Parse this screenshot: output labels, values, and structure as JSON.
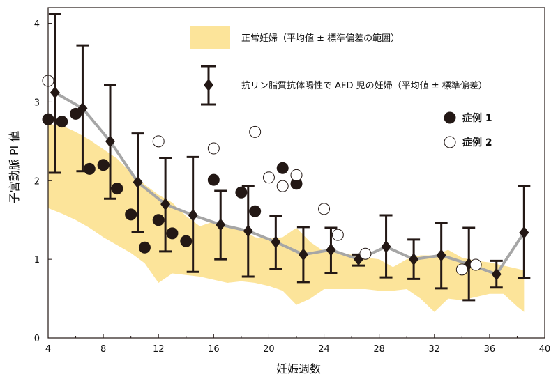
{
  "chart_data": {
    "type": "line",
    "xlabel": "妊娠週数",
    "ylabel": "子宮動脈 PI 値",
    "xlim": [
      4,
      40
    ],
    "ylim": [
      0,
      4.2
    ],
    "xticks": [
      4,
      8,
      12,
      16,
      20,
      24,
      28,
      32,
      36,
      40
    ],
    "yticks": [
      0,
      1,
      2,
      3,
      4
    ],
    "grid": false,
    "legend_position": "top-right",
    "colors": {
      "band": "#fce49a",
      "mean_line": "#a6a6a6",
      "marker": "#231815"
    },
    "series": [
      {
        "name": "正常妊婦（平均値 ± 標準偏差の範囲）",
        "kind": "band",
        "x": [
          4,
          5,
          6,
          7,
          8,
          9,
          10,
          11,
          12,
          13,
          14,
          15,
          16,
          17,
          18,
          19,
          20,
          21,
          22,
          23,
          24,
          25,
          26,
          27,
          28,
          29,
          30,
          31,
          32,
          33,
          34,
          35,
          36,
          37,
          38,
          38.5
        ],
        "lower": [
          1.65,
          1.58,
          1.5,
          1.4,
          1.28,
          1.18,
          1.08,
          0.95,
          0.7,
          0.82,
          0.8,
          0.78,
          0.74,
          0.7,
          0.72,
          0.7,
          0.66,
          0.6,
          0.42,
          0.5,
          0.62,
          0.62,
          0.62,
          0.62,
          0.6,
          0.6,
          0.62,
          0.5,
          0.33,
          0.5,
          0.48,
          0.52,
          0.56,
          0.56,
          0.4,
          0.33
        ],
        "upper": [
          2.72,
          2.7,
          2.62,
          2.52,
          2.4,
          2.28,
          2.1,
          1.95,
          1.82,
          1.72,
          1.55,
          1.42,
          1.48,
          1.4,
          1.38,
          1.28,
          1.26,
          1.28,
          1.4,
          1.22,
          1.1,
          1.08,
          1.06,
          1.02,
          1.0,
          0.9,
          1.0,
          1.05,
          1.05,
          1.12,
          1.02,
          0.98,
          0.96,
          0.92,
          0.88,
          0.86
        ]
      },
      {
        "name": "抗リン脂質抗体陽性で AFD 児の妊婦（平均値 ± 標準偏差）",
        "kind": "mean_sd",
        "x": [
          4.5,
          6.5,
          8.5,
          10.5,
          12.5,
          14.5,
          16.5,
          18.5,
          20.5,
          22.5,
          24.5,
          26.5,
          28.5,
          30.5,
          32.5,
          34.5,
          36.5,
          38.5
        ],
        "mean": [
          3.12,
          2.92,
          2.5,
          1.98,
          1.7,
          1.56,
          1.44,
          1.36,
          1.22,
          1.06,
          1.12,
          1.0,
          1.16,
          1.0,
          1.05,
          0.94,
          0.81,
          1.34
        ],
        "lower": [
          2.1,
          2.12,
          1.77,
          1.35,
          1.1,
          0.84,
          1.0,
          0.78,
          0.88,
          0.71,
          0.82,
          0.92,
          0.77,
          0.75,
          0.63,
          0.48,
          0.64,
          0.76
        ],
        "upper": [
          4.12,
          3.72,
          3.22,
          2.6,
          2.29,
          2.3,
          1.87,
          1.93,
          1.55,
          1.41,
          1.4,
          1.06,
          1.56,
          1.25,
          1.46,
          1.4,
          0.98,
          1.93
        ]
      },
      {
        "name": "症例 1",
        "kind": "scatter",
        "fill": "#231815",
        "points": [
          [
            4,
            2.78
          ],
          [
            5,
            2.75
          ],
          [
            6,
            2.85
          ],
          [
            7,
            2.15
          ],
          [
            8,
            2.2
          ],
          [
            9,
            1.9
          ],
          [
            10,
            1.57
          ],
          [
            11,
            1.15
          ],
          [
            12,
            1.5
          ],
          [
            13,
            1.33
          ],
          [
            14,
            1.23
          ],
          [
            16,
            2.01
          ],
          [
            18,
            1.85
          ],
          [
            19,
            1.61
          ],
          [
            21,
            2.16
          ],
          [
            22,
            1.96
          ]
        ]
      },
      {
        "name": "症例 2",
        "kind": "scatter",
        "fill": "#ffffff",
        "points": [
          [
            4,
            3.27
          ],
          [
            12,
            2.5
          ],
          [
            16,
            2.41
          ],
          [
            19,
            2.62
          ],
          [
            20,
            2.04
          ],
          [
            21,
            1.93
          ],
          [
            22,
            2.07
          ],
          [
            24,
            1.64
          ],
          [
            25,
            1.31
          ],
          [
            27,
            1.07
          ],
          [
            34,
            0.87
          ],
          [
            35,
            0.93
          ]
        ]
      }
    ]
  }
}
